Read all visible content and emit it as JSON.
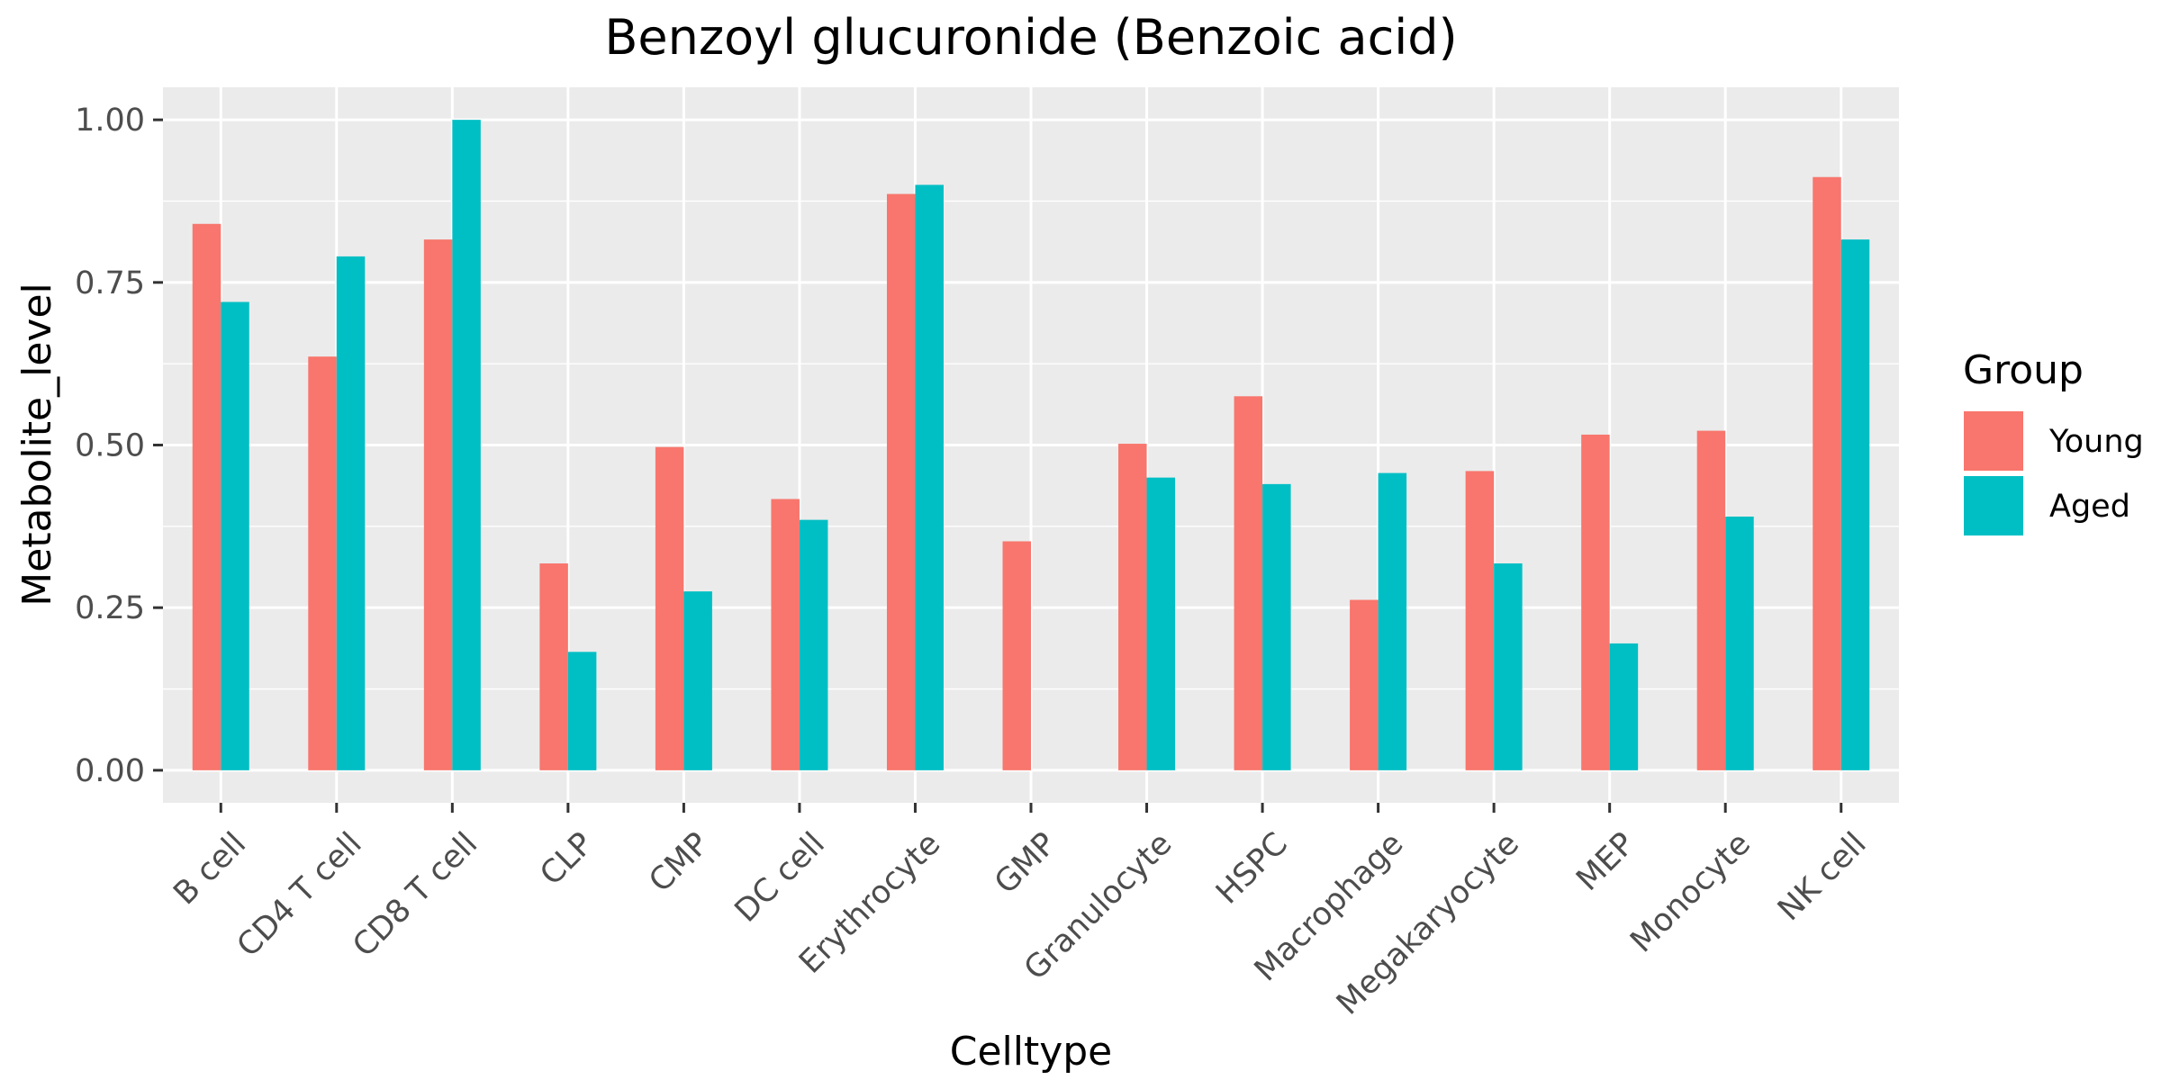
{
  "chart_data": {
    "type": "bar",
    "title": "Benzoyl glucuronide (Benzoic acid)",
    "xlabel": "Celltype",
    "ylabel": "Metabolite_level",
    "ylim": [
      -0.05,
      1.05
    ],
    "yticks": [
      0,
      0.25,
      0.5,
      0.75,
      1.0
    ],
    "ytick_labels": [
      "0.00",
      "0.25",
      "0.50",
      "0.75",
      "1.00"
    ],
    "grid": true,
    "legend_position": "right",
    "legend_title": "Group",
    "categories": [
      "B cell",
      "CD4 T cell",
      "CD8 T cell",
      "CLP",
      "CMP",
      "DC cell",
      "Erythrocyte",
      "GMP",
      "Granulocyte",
      "HSPC",
      "Macrophage",
      "Megakaryocyte",
      "MEP",
      "Monocyte",
      "NK cell"
    ],
    "series": [
      {
        "name": "Young",
        "color": "#F8766D",
        "values": [
          0.84,
          0.636,
          0.816,
          0.318,
          0.497,
          0.417,
          0.886,
          0.352,
          0.502,
          0.575,
          0.262,
          0.46,
          0.516,
          0.522,
          0.912
        ]
      },
      {
        "name": "Aged",
        "color": "#00BFC4",
        "values": [
          0.72,
          0.79,
          1.0,
          0.182,
          0.275,
          0.385,
          0.9,
          0.0,
          0.45,
          0.44,
          0.457,
          0.318,
          0.195,
          0.39,
          0.816
        ]
      }
    ],
    "colors": {
      "panel_background": "#EBEBEB",
      "grid_major": "#FFFFFF",
      "tick_text": "#4D4D4D",
      "tick_mark": "#333333"
    }
  }
}
